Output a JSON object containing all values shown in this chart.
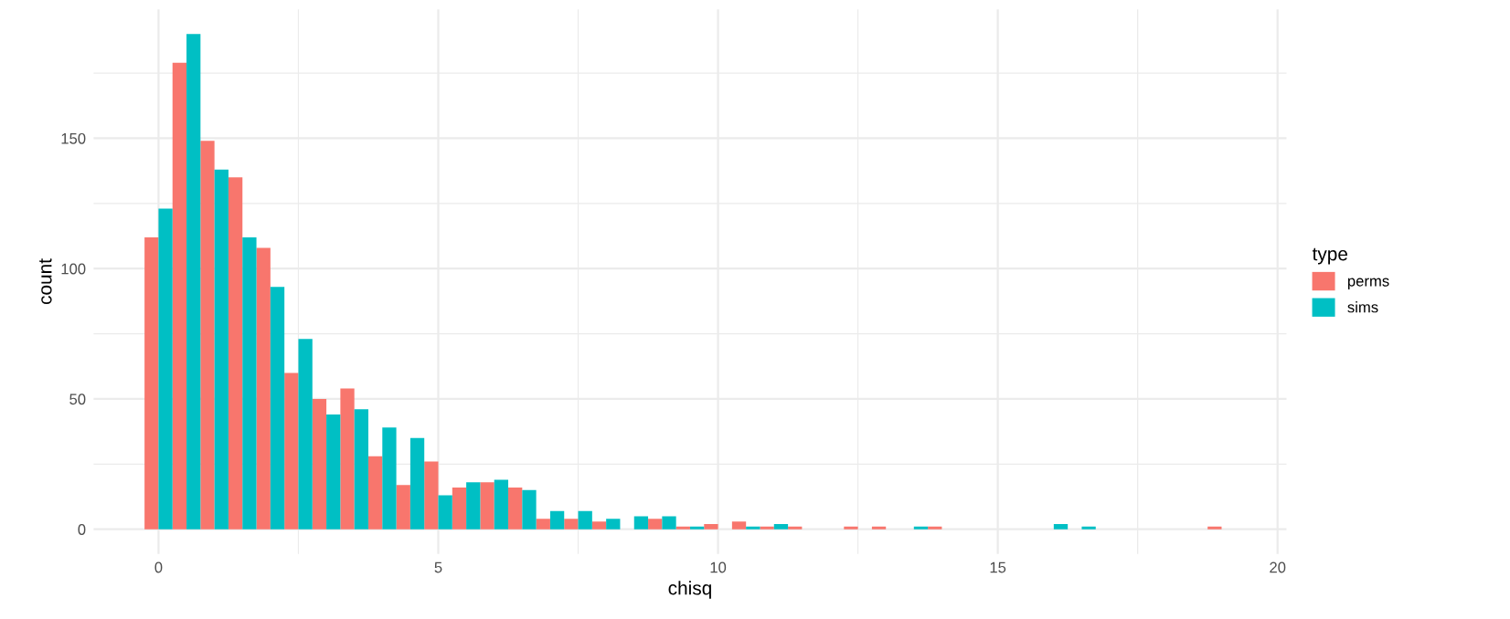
{
  "chart_data": {
    "type": "histogram",
    "xlabel": "chisq",
    "ylabel": "count",
    "legend_title": "type",
    "legend": "right",
    "grid": true,
    "bins": [
      -0.25,
      0.25,
      0.75,
      1.25,
      1.75,
      2.25,
      2.75,
      3.25,
      3.75,
      4.25,
      4.75,
      5.25,
      5.75,
      6.25,
      6.75,
      7.25,
      7.75,
      8.25,
      8.75,
      9.25,
      9.75,
      10.25,
      10.75,
      11.25,
      11.75,
      12.25,
      12.75,
      13.25,
      13.75,
      14.25,
      14.75,
      15.25,
      15.75,
      16.25,
      16.75,
      17.25,
      17.75,
      18.25,
      18.75,
      19.25
    ],
    "series": [
      {
        "name": "perms",
        "color": "#f8766d",
        "values": [
          112,
          179,
          149,
          135,
          108,
          60,
          50,
          54,
          28,
          17,
          26,
          16,
          18,
          16,
          4,
          4,
          3,
          0,
          4,
          1,
          2,
          3,
          1,
          1,
          0,
          1,
          1,
          0,
          1,
          0,
          0,
          0,
          0,
          0,
          0,
          0,
          0,
          0,
          1
        ]
      },
      {
        "name": "sims",
        "color": "#00bfc4",
        "values": [
          123,
          190,
          138,
          112,
          93,
          73,
          44,
          46,
          39,
          35,
          13,
          18,
          19,
          15,
          7,
          7,
          4,
          5,
          5,
          1,
          0,
          1,
          2,
          0,
          0,
          0,
          0,
          1,
          0,
          0,
          0,
          0,
          2,
          1,
          0,
          0,
          0,
          0,
          0
        ]
      }
    ],
    "xlim": [
      -1.16,
      20.16
    ],
    "ylim": [
      -9.5,
      199.5
    ],
    "xticks": [
      0,
      {
        "value": 2.5,
        "label": null
      },
      5,
      {
        "value": 7.5,
        "label": null
      },
      10,
      {
        "value": 12.5,
        "label": null
      },
      15,
      {
        "value": 17.5,
        "label": null
      },
      20
    ],
    "yticks": [
      0,
      {
        "value": 25,
        "label": null
      },
      50,
      {
        "value": 75,
        "label": null
      },
      100,
      {
        "value": 125,
        "label": null
      },
      150,
      {
        "value": 175,
        "label": null
      }
    ]
  }
}
